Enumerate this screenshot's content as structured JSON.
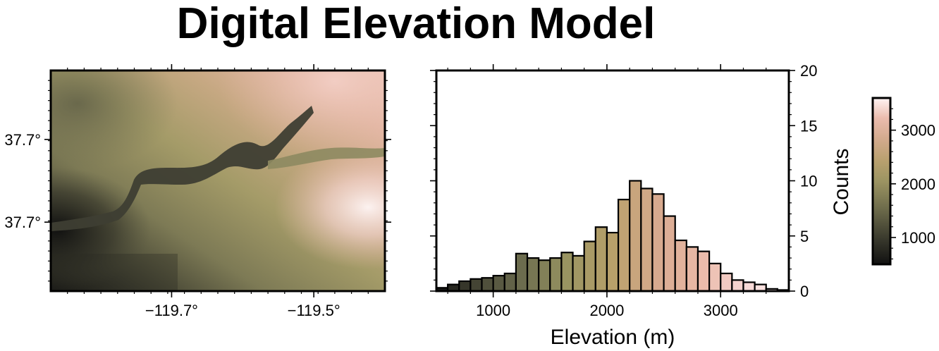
{
  "title": "Digital Elevation Model",
  "colors": {
    "palette": [
      "#111111",
      "#4a4a38",
      "#6e6e50",
      "#9a9562",
      "#b8a06a",
      "#d7aa8e",
      "#eab9a8",
      "#f7d7d4",
      "#fff4f4"
    ],
    "frame": "#000000",
    "background": "#ffffff"
  },
  "chart_data": [
    {
      "type": "heatmap",
      "name": "elevation-map",
      "xlabel": "",
      "ylabel": "",
      "xlim": [
        -119.87,
        -119.4
      ],
      "ylim": [
        37.66,
        37.74
      ],
      "x_ticks": [
        {
          "value": -119.7,
          "label": "−119.7°"
        },
        {
          "value": -119.5,
          "label": "−119.5°"
        }
      ],
      "y_ticks": [
        {
          "value": 37.715,
          "label": "37.7°"
        },
        {
          "value": 37.685,
          "label": "37.7°"
        }
      ],
      "grid": false
    },
    {
      "type": "bar",
      "name": "elevation-histogram",
      "xlabel": "Elevation (m)",
      "ylabel": "Counts",
      "xlim": [
        500,
        3600
      ],
      "ylim": [
        0,
        20
      ],
      "x_ticks": [
        1000,
        2000,
        3000
      ],
      "y_ticks": [
        0,
        5,
        10,
        15,
        20
      ],
      "y_axis_side": "right",
      "bin_width": 100,
      "bin_starts": [
        500,
        600,
        700,
        800,
        900,
        1000,
        1100,
        1200,
        1300,
        1400,
        1500,
        1600,
        1700,
        1800,
        1900,
        2000,
        2100,
        2200,
        2300,
        2400,
        2500,
        2600,
        2700,
        2800,
        2900,
        3000,
        3100,
        3200,
        3300,
        3400,
        3500
      ],
      "values": [
        0.3,
        0.6,
        0.9,
        1.1,
        1.2,
        1.4,
        1.6,
        3.4,
        3.0,
        2.8,
        3.0,
        3.5,
        3.2,
        4.5,
        5.8,
        5.3,
        8.3,
        10.0,
        9.3,
        8.8,
        6.8,
        4.6,
        4.0,
        3.6,
        2.5,
        1.6,
        1.0,
        0.8,
        0.6,
        0.2,
        0.1
      ],
      "grid": false
    },
    {
      "type": "colorbar",
      "name": "elevation-colorbar",
      "range": [
        500,
        3600
      ],
      "ticks": [
        1000,
        2000,
        3000
      ]
    }
  ]
}
